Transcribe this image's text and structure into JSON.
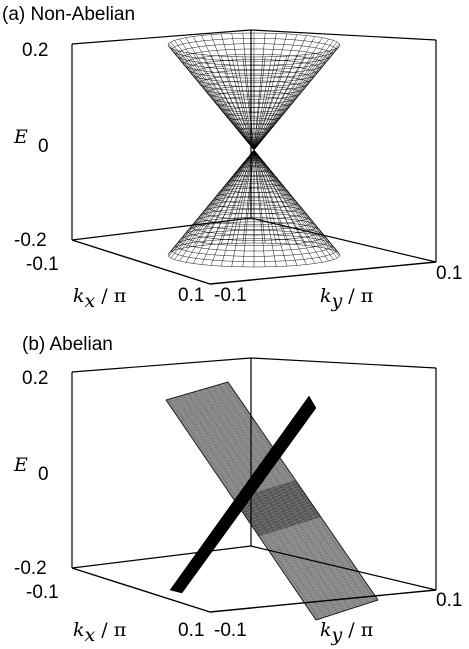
{
  "chart_data": [
    {
      "type": "surface",
      "title": "(a) Non-Abelian",
      "surface": "cone",
      "zlabel": "E",
      "xlabel_symbol": "k",
      "xlabel_subscript": "x",
      "xlabel_unit": " / π",
      "ylabel_symbol": "k",
      "ylabel_subscript": "y",
      "ylabel_unit": " / π",
      "xlim": [
        -0.1,
        0.1
      ],
      "ylim": [
        -0.1,
        0.1
      ],
      "zlim": [
        -0.2,
        0.2
      ],
      "ticks": {
        "z_top": "0.2",
        "z_mid": "0",
        "z_bot": "-0.2",
        "x_left": "-0.1",
        "x_right": "0.1",
        "y_left": "-0.1",
        "y_right": "0.1"
      }
    },
    {
      "type": "surface",
      "title": "(b) Abelian",
      "surface": "two-planes",
      "zlabel": "E",
      "xlabel_symbol": "k",
      "xlabel_subscript": "x",
      "xlabel_unit": " / π",
      "ylabel_symbol": "k",
      "ylabel_subscript": "y",
      "ylabel_unit": " / π",
      "xlim": [
        -0.1,
        0.1
      ],
      "ylim": [
        -0.1,
        0.1
      ],
      "zlim": [
        -0.2,
        0.2
      ],
      "ticks": {
        "z_top": "0.2",
        "z_mid": "0",
        "z_bot": "-0.2",
        "x_left": "-0.1",
        "x_right": "0.1",
        "y_left": "-0.1",
        "y_right": "0.1"
      }
    }
  ]
}
